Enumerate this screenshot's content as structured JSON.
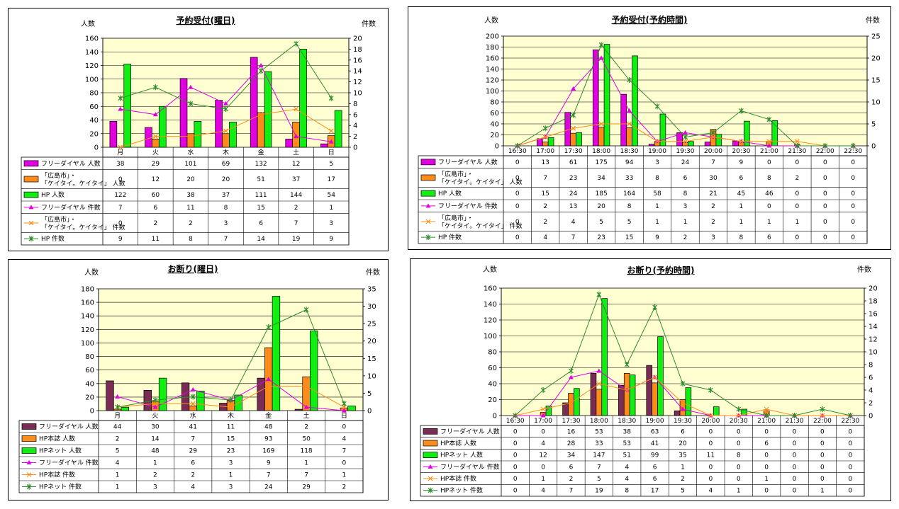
{
  "colors": {
    "magenta": "#e000e0",
    "orange": "#ff8c1a",
    "green": "#11ee11",
    "maroon": "#7b2c55",
    "plot_bg": "#ffffd2",
    "green_line": "#2e8b2e"
  },
  "charts": [
    {
      "id": "reservation-weekday",
      "title": "予約受付(曜日)",
      "left_unit": "人数",
      "right_unit": "件数",
      "categories": [
        "月",
        "火",
        "水",
        "木",
        "金",
        "土",
        "日"
      ],
      "left_ticks": [
        "0",
        "20",
        "40",
        "60",
        "80",
        "100",
        "120",
        "140",
        "160"
      ],
      "right_ticks": [
        "0",
        "2",
        "4",
        "6",
        "8",
        "10",
        "12",
        "14",
        "16",
        "18",
        "20"
      ],
      "rows": [
        {
          "label": [
            "フリーダイヤル 人数"
          ],
          "values": [
            "38",
            "29",
            "101",
            "69",
            "132",
            "12",
            "5"
          ]
        },
        {
          "label": [
            "「広島市」・",
            "「ケイタイ。ケイタイ」 人数"
          ],
          "values": [
            "0",
            "12",
            "20",
            "20",
            "51",
            "37",
            "17"
          ]
        },
        {
          "label": [
            "HP 人数"
          ],
          "values": [
            "122",
            "60",
            "38",
            "37",
            "111",
            "144",
            "54"
          ]
        },
        {
          "label": [
            "フリーダイヤル 件数"
          ],
          "values": [
            "7",
            "6",
            "11",
            "8",
            "15",
            "2",
            "1"
          ]
        },
        {
          "label": [
            "「広島市」・",
            "「ケイタイ。ケイタイ」 件数"
          ],
          "values": [
            "0",
            "2",
            "2",
            "3",
            "6",
            "7",
            "3"
          ]
        },
        {
          "label": [
            "HP 件数"
          ],
          "values": [
            "9",
            "11",
            "8",
            "7",
            "14",
            "19",
            "9"
          ]
        }
      ]
    },
    {
      "id": "reservation-time",
      "title": "予約受付(予約時間)",
      "left_unit": "人数",
      "right_unit": "件数",
      "categories": [
        "16:30",
        "17:00",
        "17:30",
        "18:00",
        "18:30",
        "19:00",
        "19:30",
        "20:00",
        "20:30",
        "21:00",
        "21:30",
        "22:00",
        "22:30"
      ],
      "left_ticks": [
        "0",
        "20",
        "40",
        "60",
        "80",
        "100",
        "120",
        "140",
        "160",
        "180",
        "200"
      ],
      "right_ticks": [
        "0",
        "5",
        "10",
        "15",
        "20",
        "25"
      ],
      "rows": [
        {
          "label": [
            "フリーダイヤル 人数"
          ],
          "values": [
            "0",
            "13",
            "61",
            "175",
            "94",
            "3",
            "24",
            "7",
            "9",
            "0",
            "0",
            "0",
            "0"
          ]
        },
        {
          "label": [
            "「広島市」・",
            "「ケイタイ。ケイタイ」 人数"
          ],
          "values": [
            "0",
            "7",
            "23",
            "34",
            "33",
            "8",
            "6",
            "30",
            "6",
            "8",
            "2",
            "0",
            "0"
          ]
        },
        {
          "label": [
            "HP 人数"
          ],
          "values": [
            "0",
            "15",
            "24",
            "185",
            "164",
            "58",
            "8",
            "21",
            "45",
            "46",
            "0",
            "0",
            "0"
          ]
        },
        {
          "label": [
            "フリーダイヤル 件数"
          ],
          "values": [
            "0",
            "2",
            "13",
            "20",
            "8",
            "1",
            "3",
            "2",
            "1",
            "0",
            "0",
            "0",
            "0"
          ]
        },
        {
          "label": [
            "「広島市」・",
            "「ケイタイ。ケイタイ」 件数"
          ],
          "values": [
            "0",
            "2",
            "4",
            "5",
            "5",
            "1",
            "1",
            "2",
            "1",
            "1",
            "1",
            "0",
            "0"
          ]
        },
        {
          "label": [
            "HP 件数"
          ],
          "values": [
            "0",
            "4",
            "7",
            "23",
            "15",
            "9",
            "2",
            "3",
            "8",
            "6",
            "0",
            "0",
            "0"
          ]
        }
      ]
    },
    {
      "id": "cancel-weekday",
      "title": "お断り(曜日)",
      "left_unit": "人数",
      "right_unit": "件数",
      "categories": [
        "月",
        "火",
        "水",
        "木",
        "金",
        "土",
        "日"
      ],
      "left_ticks": [
        "0",
        "20",
        "40",
        "60",
        "80",
        "100",
        "120",
        "140",
        "160",
        "180"
      ],
      "right_ticks": [
        "0",
        "5",
        "10",
        "15",
        "20",
        "25",
        "30",
        "35"
      ],
      "rows": [
        {
          "label": [
            "フリーダイヤル 人数"
          ],
          "values": [
            "44",
            "30",
            "41",
            "11",
            "48",
            "2",
            "0"
          ]
        },
        {
          "label": [
            "HP本誌 人数"
          ],
          "values": [
            "2",
            "14",
            "7",
            "15",
            "93",
            "50",
            "4"
          ]
        },
        {
          "label": [
            "HPネット 人数"
          ],
          "values": [
            "5",
            "48",
            "29",
            "23",
            "169",
            "118",
            "7"
          ]
        },
        {
          "label": [
            "フリーダイヤル 件数"
          ],
          "values": [
            "4",
            "1",
            "6",
            "3",
            "9",
            "1",
            "0"
          ]
        },
        {
          "label": [
            "HP本誌 件数"
          ],
          "values": [
            "1",
            "2",
            "2",
            "1",
            "7",
            "7",
            "1"
          ]
        },
        {
          "label": [
            "HPネット 件数"
          ],
          "values": [
            "1",
            "3",
            "4",
            "3",
            "24",
            "29",
            "2"
          ]
        }
      ]
    },
    {
      "id": "cancel-time",
      "title": "お断り(予約時間)",
      "left_unit": "人数",
      "right_unit": "件数",
      "categories": [
        "16:30",
        "17:00",
        "17:30",
        "18:00",
        "18:30",
        "19:00",
        "19:30",
        "20:00",
        "20:30",
        "21:00",
        "21:30",
        "22:00",
        "22:30"
      ],
      "left_ticks": [
        "0",
        "20",
        "40",
        "60",
        "80",
        "100",
        "120",
        "140",
        "160"
      ],
      "right_ticks": [
        "0",
        "2",
        "4",
        "6",
        "8",
        "10",
        "12",
        "14",
        "16",
        "18",
        "20"
      ],
      "rows": [
        {
          "label": [
            "フリーダイヤル 人数"
          ],
          "values": [
            "0",
            "0",
            "16",
            "53",
            "38",
            "63",
            "6",
            "0",
            "0",
            "0",
            "0",
            "0",
            "0"
          ]
        },
        {
          "label": [
            "HP本誌 人数"
          ],
          "values": [
            "0",
            "4",
            "28",
            "33",
            "53",
            "41",
            "20",
            "0",
            "0",
            "6",
            "0",
            "0",
            "0"
          ]
        },
        {
          "label": [
            "HPネット 人数"
          ],
          "values": [
            "0",
            "12",
            "34",
            "147",
            "51",
            "99",
            "35",
            "11",
            "8",
            "0",
            "0",
            "0",
            "0"
          ]
        },
        {
          "label": [
            "フリーダイヤル 件数"
          ],
          "values": [
            "0",
            "0",
            "6",
            "7",
            "4",
            "6",
            "1",
            "0",
            "0",
            "0",
            "0",
            "0",
            "0"
          ]
        },
        {
          "label": [
            "HP本誌 件数"
          ],
          "values": [
            "0",
            "1",
            "2",
            "5",
            "4",
            "6",
            "2",
            "0",
            "0",
            "1",
            "0",
            "0",
            "0"
          ]
        },
        {
          "label": [
            "HPネット 件数"
          ],
          "values": [
            "0",
            "4",
            "7",
            "19",
            "8",
            "17",
            "5",
            "4",
            "1",
            "0",
            "0",
            "1",
            "0"
          ]
        }
      ]
    }
  ],
  "chart_data": [
    {
      "type": "bar",
      "title": "予約受付(曜日)",
      "categories": [
        "月",
        "火",
        "水",
        "木",
        "金",
        "土",
        "日"
      ],
      "ylabel": "人数",
      "y2label": "件数",
      "ylim": [
        0,
        160
      ],
      "y2lim": [
        0,
        20
      ],
      "series": [
        {
          "name": "フリーダイヤル 人数",
          "kind": "bar",
          "axis": "left",
          "values": [
            38,
            29,
            101,
            69,
            132,
            12,
            5
          ]
        },
        {
          "name": "「広島市」・「ケイタイ。ケイタイ」 人数",
          "kind": "bar",
          "axis": "left",
          "values": [
            0,
            12,
            20,
            20,
            51,
            37,
            17
          ]
        },
        {
          "name": "HP 人数",
          "kind": "bar",
          "axis": "left",
          "values": [
            122,
            60,
            38,
            37,
            111,
            144,
            54
          ]
        },
        {
          "name": "フリーダイヤル 件数",
          "kind": "line",
          "axis": "right",
          "values": [
            7,
            6,
            11,
            8,
            15,
            2,
            1
          ]
        },
        {
          "name": "「広島市」・「ケイタイ。ケイタイ」 件数",
          "kind": "line",
          "axis": "right",
          "values": [
            0,
            2,
            2,
            3,
            6,
            7,
            3
          ]
        },
        {
          "name": "HP 件数",
          "kind": "line",
          "axis": "right",
          "values": [
            9,
            11,
            8,
            7,
            14,
            19,
            9
          ]
        }
      ]
    },
    {
      "type": "bar",
      "title": "予約受付(予約時間)",
      "categories": [
        "16:30",
        "17:00",
        "17:30",
        "18:00",
        "18:30",
        "19:00",
        "19:30",
        "20:00",
        "20:30",
        "21:00",
        "21:30",
        "22:00",
        "22:30"
      ],
      "ylabel": "人数",
      "y2label": "件数",
      "ylim": [
        0,
        200
      ],
      "y2lim": [
        0,
        25
      ],
      "series": [
        {
          "name": "フリーダイヤル 人数",
          "kind": "bar",
          "axis": "left",
          "values": [
            0,
            13,
            61,
            175,
            94,
            3,
            24,
            7,
            9,
            0,
            0,
            0,
            0
          ]
        },
        {
          "name": "「広島市」・「ケイタイ。ケイタイ」 人数",
          "kind": "bar",
          "axis": "left",
          "values": [
            0,
            7,
            23,
            34,
            33,
            8,
            6,
            30,
            6,
            8,
            2,
            0,
            0
          ]
        },
        {
          "name": "HP 人数",
          "kind": "bar",
          "axis": "left",
          "values": [
            0,
            15,
            24,
            185,
            164,
            58,
            8,
            21,
            45,
            46,
            0,
            0,
            0
          ]
        },
        {
          "name": "フリーダイヤル 件数",
          "kind": "line",
          "axis": "right",
          "values": [
            0,
            2,
            13,
            20,
            8,
            1,
            3,
            2,
            1,
            0,
            0,
            0,
            0
          ]
        },
        {
          "name": "「広島市」・「ケイタイ。ケイタイ」 件数",
          "kind": "line",
          "axis": "right",
          "values": [
            0,
            2,
            4,
            5,
            5,
            1,
            1,
            2,
            1,
            1,
            1,
            0,
            0
          ]
        },
        {
          "name": "HP 件数",
          "kind": "line",
          "axis": "right",
          "values": [
            0,
            4,
            7,
            23,
            15,
            9,
            2,
            3,
            8,
            6,
            0,
            0,
            0
          ]
        }
      ]
    },
    {
      "type": "bar",
      "title": "お断り(曜日)",
      "categories": [
        "月",
        "火",
        "水",
        "木",
        "金",
        "土",
        "日"
      ],
      "ylabel": "人数",
      "y2label": "件数",
      "ylim": [
        0,
        180
      ],
      "y2lim": [
        0,
        35
      ],
      "series": [
        {
          "name": "フリーダイヤル 人数",
          "kind": "bar",
          "axis": "left",
          "values": [
            44,
            30,
            41,
            11,
            48,
            2,
            0
          ]
        },
        {
          "name": "HP本誌 人数",
          "kind": "bar",
          "axis": "left",
          "values": [
            2,
            14,
            7,
            15,
            93,
            50,
            4
          ]
        },
        {
          "name": "HPネット 人数",
          "kind": "bar",
          "axis": "left",
          "values": [
            5,
            48,
            29,
            23,
            169,
            118,
            7
          ]
        },
        {
          "name": "フリーダイヤル 件数",
          "kind": "line",
          "axis": "right",
          "values": [
            4,
            1,
            6,
            3,
            9,
            1,
            0
          ]
        },
        {
          "name": "HP本誌 件数",
          "kind": "line",
          "axis": "right",
          "values": [
            1,
            2,
            2,
            1,
            7,
            7,
            1
          ]
        },
        {
          "name": "HPネット 件数",
          "kind": "line",
          "axis": "right",
          "values": [
            1,
            3,
            4,
            3,
            24,
            29,
            2
          ]
        }
      ]
    },
    {
      "type": "bar",
      "title": "お断り(予約時間)",
      "categories": [
        "16:30",
        "17:00",
        "17:30",
        "18:00",
        "18:30",
        "19:00",
        "19:30",
        "20:00",
        "20:30",
        "21:00",
        "21:30",
        "22:00",
        "22:30"
      ],
      "ylabel": "人数",
      "y2label": "件数",
      "ylim": [
        0,
        160
      ],
      "y2lim": [
        0,
        20
      ],
      "series": [
        {
          "name": "フリーダイヤル 人数",
          "kind": "bar",
          "axis": "left",
          "values": [
            0,
            0,
            16,
            53,
            38,
            63,
            6,
            0,
            0,
            0,
            0,
            0,
            0
          ]
        },
        {
          "name": "HP本誌 人数",
          "kind": "bar",
          "axis": "left",
          "values": [
            0,
            4,
            28,
            33,
            53,
            41,
            20,
            0,
            0,
            6,
            0,
            0,
            0
          ]
        },
        {
          "name": "HPネット 人数",
          "kind": "bar",
          "axis": "left",
          "values": [
            0,
            12,
            34,
            147,
            51,
            99,
            35,
            11,
            8,
            0,
            0,
            0,
            0
          ]
        },
        {
          "name": "フリーダイヤル 件数",
          "kind": "line",
          "axis": "right",
          "values": [
            0,
            0,
            6,
            7,
            4,
            6,
            1,
            0,
            0,
            0,
            0,
            0,
            0
          ]
        },
        {
          "name": "HP本誌 件数",
          "kind": "line",
          "axis": "right",
          "values": [
            0,
            1,
            2,
            5,
            4,
            6,
            2,
            0,
            0,
            1,
            0,
            0,
            0
          ]
        },
        {
          "name": "HPネット 件数",
          "kind": "line",
          "axis": "right",
          "values": [
            0,
            4,
            7,
            19,
            8,
            17,
            5,
            4,
            1,
            0,
            0,
            1,
            0
          ]
        }
      ]
    }
  ]
}
